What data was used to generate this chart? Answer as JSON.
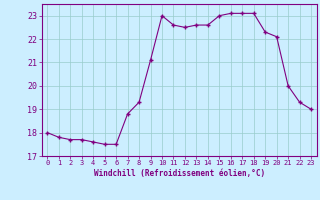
{
  "x": [
    0,
    1,
    2,
    3,
    4,
    5,
    6,
    7,
    8,
    9,
    10,
    11,
    12,
    13,
    14,
    15,
    16,
    17,
    18,
    19,
    20,
    21,
    22,
    23
  ],
  "y": [
    18.0,
    17.8,
    17.7,
    17.7,
    17.6,
    17.5,
    17.5,
    18.8,
    19.3,
    21.1,
    23.0,
    22.6,
    22.5,
    22.6,
    22.6,
    23.0,
    23.1,
    23.1,
    23.1,
    22.3,
    22.1,
    20.0,
    19.3,
    19.0
  ],
  "line_color": "#800080",
  "marker": "+",
  "marker_size": 3,
  "bg_color": "#cceeff",
  "grid_color": "#99cccc",
  "xlabel": "Windchill (Refroidissement éolien,°C)",
  "xlabel_color": "#800080",
  "tick_color": "#800080",
  "ylim": [
    17,
    23.5
  ],
  "xlim": [
    -0.5,
    23.5
  ],
  "yticks": [
    17,
    18,
    19,
    20,
    21,
    22,
    23
  ],
  "xticks": [
    0,
    1,
    2,
    3,
    4,
    5,
    6,
    7,
    8,
    9,
    10,
    11,
    12,
    13,
    14,
    15,
    16,
    17,
    18,
    19,
    20,
    21,
    22,
    23
  ]
}
